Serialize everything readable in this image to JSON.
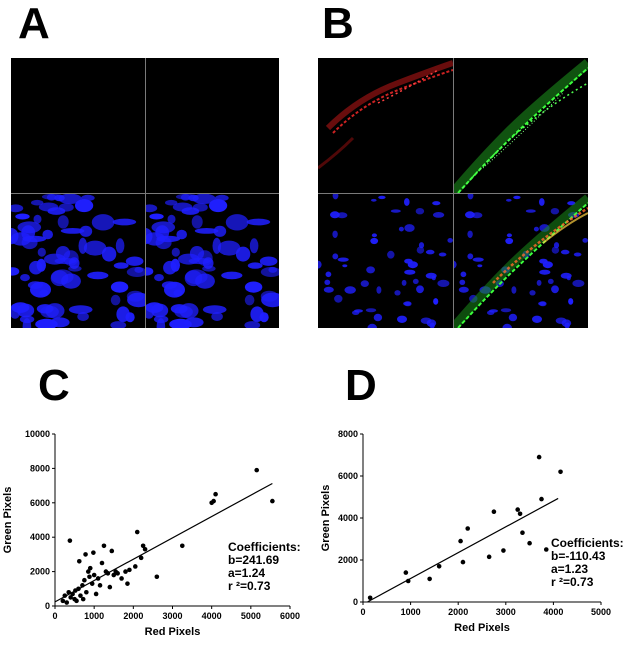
{
  "panel_labels": {
    "a": "A",
    "b": "B",
    "c": "C",
    "d": "D"
  },
  "micrographs": {
    "a": {
      "top_left": "black",
      "top_right": "black",
      "bottom_left": "blue nuclei",
      "bottom_right": "blue nuclei"
    },
    "b": {
      "top_left": "red signal",
      "top_right": "green signal",
      "bottom_left": "blue nuclei",
      "bottom_right": "merged"
    },
    "colors": {
      "red": "#e02020",
      "green": "#28d428",
      "blue": "#1f1fff",
      "divider": "#7a7a7a"
    }
  },
  "chart_data": [
    {
      "type": "scatter",
      "panel": "C",
      "xlabel": "Red Pixels",
      "ylabel": "Green Pixels",
      "xlim": [
        0,
        6000
      ],
      "ylim": [
        0,
        10000
      ],
      "xticks": [
        0,
        1000,
        2000,
        3000,
        4000,
        5000,
        6000
      ],
      "yticks": [
        0,
        2000,
        4000,
        6000,
        8000,
        10000
      ],
      "points": [
        [
          200,
          300
        ],
        [
          250,
          600
        ],
        [
          300,
          200
        ],
        [
          350,
          800
        ],
        [
          380,
          3800
        ],
        [
          400,
          500
        ],
        [
          450,
          700
        ],
        [
          500,
          400
        ],
        [
          520,
          900
        ],
        [
          550,
          300
        ],
        [
          600,
          1000
        ],
        [
          620,
          2600
        ],
        [
          650,
          600
        ],
        [
          700,
          1200
        ],
        [
          720,
          400
        ],
        [
          750,
          1500
        ],
        [
          780,
          3000
        ],
        [
          800,
          800
        ],
        [
          850,
          2000
        ],
        [
          880,
          1700
        ],
        [
          900,
          2200
        ],
        [
          950,
          1300
        ],
        [
          980,
          3100
        ],
        [
          1000,
          1800
        ],
        [
          1050,
          700
        ],
        [
          1100,
          1600
        ],
        [
          1150,
          1200
        ],
        [
          1200,
          2500
        ],
        [
          1250,
          3500
        ],
        [
          1300,
          2000
        ],
        [
          1350,
          1900
        ],
        [
          1400,
          1100
        ],
        [
          1450,
          3200
        ],
        [
          1500,
          1800
        ],
        [
          1550,
          2000
        ],
        [
          1600,
          1900
        ],
        [
          1700,
          1600
        ],
        [
          1800,
          2000
        ],
        [
          1850,
          1300
        ],
        [
          1900,
          2100
        ],
        [
          2050,
          2300
        ],
        [
          2100,
          4300
        ],
        [
          2200,
          2800
        ],
        [
          2250,
          3500
        ],
        [
          2300,
          3300
        ],
        [
          2600,
          1700
        ],
        [
          3250,
          3500
        ],
        [
          4000,
          6000
        ],
        [
          4050,
          6100
        ],
        [
          4100,
          6500
        ],
        [
          5150,
          7900
        ],
        [
          5550,
          6100
        ]
      ],
      "fit": {
        "intercept": 241.69,
        "slope": 1.24,
        "x_range": [
          0,
          5550
        ]
      },
      "annotation": [
        "Coefficients:",
        "b=241.69",
        "a=1.24",
        "r ²=0.73"
      ]
    },
    {
      "type": "scatter",
      "panel": "D",
      "xlabel": "Red Pixels",
      "ylabel": "Green Pixels",
      "xlim": [
        0,
        5000
      ],
      "ylim": [
        0,
        8000
      ],
      "xticks": [
        0,
        1000,
        2000,
        3000,
        4000,
        5000
      ],
      "yticks": [
        0,
        2000,
        4000,
        6000,
        8000
      ],
      "points": [
        [
          150,
          200
        ],
        [
          900,
          1400
        ],
        [
          950,
          1000
        ],
        [
          1400,
          1100
        ],
        [
          1600,
          1700
        ],
        [
          2050,
          2900
        ],
        [
          2100,
          1900
        ],
        [
          2200,
          3500
        ],
        [
          2650,
          2150
        ],
        [
          2750,
          4300
        ],
        [
          2950,
          2450
        ],
        [
          3250,
          4400
        ],
        [
          3300,
          4200
        ],
        [
          3350,
          3300
        ],
        [
          3500,
          2800
        ],
        [
          3700,
          6900
        ],
        [
          3750,
          4900
        ],
        [
          3850,
          2500
        ],
        [
          4150,
          6200
        ]
      ],
      "fit": {
        "intercept": -110.43,
        "slope": 1.23,
        "x_range": [
          100,
          4100
        ]
      },
      "annotation": [
        "Coefficients:",
        "b=-110.43",
        "a=1.23",
        "r ²=0.73"
      ]
    }
  ]
}
